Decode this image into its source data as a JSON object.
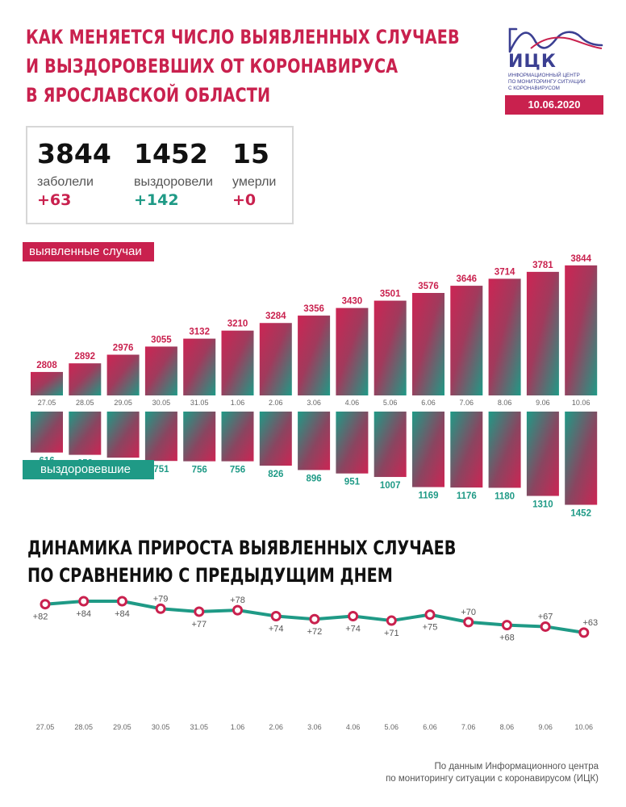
{
  "header": {
    "title_lines": [
      "КАК МЕНЯЕТСЯ ЧИСЛО ВЫЯВЛЕННЫХ СЛУЧАЕВ",
      "И ВЫЗДОРОВЕВШИХ ОТ КОРОНАВИРУСА",
      "В ЯРОСЛАВСКОЙ ОБЛАСТИ"
    ],
    "logo_abbr": "ИЦК",
    "logo_sub_lines": [
      "ИНФОРМАЦИОННЫЙ ЦЕНТР",
      "ПО МОНИТОРИНГУ СИТУАЦИИ",
      "С КОРОНАВИРУСОМ"
    ],
    "date": "10.06.2020"
  },
  "summary": {
    "cases": {
      "value": "3844",
      "label": "заболели",
      "delta": "+63"
    },
    "recovered": {
      "value": "1452",
      "label": "выздоровели",
      "delta": "+142"
    },
    "deaths": {
      "value": "15",
      "label": "умерли",
      "delta": "+0"
    }
  },
  "colors": {
    "accent_red": "#c9214e",
    "accent_green": "#1f9a86",
    "logo_blue": "#3b3f92"
  },
  "chart_data": [
    {
      "type": "bar",
      "categories": [
        "27.05",
        "28.05",
        "29.05",
        "30.05",
        "31.05",
        "1.06",
        "2.06",
        "3.06",
        "4.06",
        "5.06",
        "6.06",
        "7.06",
        "8.06",
        "9.06",
        "10.06"
      ],
      "series": [
        {
          "name": "выявленные случаи",
          "values": [
            2808,
            2892,
            2976,
            3055,
            3132,
            3210,
            3284,
            3356,
            3430,
            3501,
            3576,
            3646,
            3714,
            3781,
            3844
          ],
          "direction": "up"
        },
        {
          "name": "выздоровевшие",
          "values": [
            616,
            653,
            698,
            751,
            756,
            756,
            826,
            896,
            951,
            1007,
            1169,
            1176,
            1180,
            1310,
            1452
          ],
          "direction": "down"
        }
      ]
    },
    {
      "type": "line",
      "title_lines": [
        "ДИНАМИКА ПРИРОСТА ВЫЯВЛЕННЫХ СЛУЧАЕВ",
        "ПО СРАВНЕНИЮ С ПРЕДЫДУЩИМ ДНЕМ"
      ],
      "categories": [
        "27.05",
        "28.05",
        "29.05",
        "30.05",
        "31.05",
        "1.06",
        "2.06",
        "3.06",
        "4.06",
        "5.06",
        "6.06",
        "7.06",
        "8.06",
        "9.06",
        "10.06"
      ],
      "values": [
        82,
        84,
        84,
        79,
        77,
        78,
        74,
        72,
        74,
        71,
        75,
        70,
        68,
        67,
        63
      ],
      "labels": [
        "+82",
        "+84",
        "+84",
        "+79",
        "+77",
        "+78",
        "+74",
        "+72",
        "+74",
        "+71",
        "+75",
        "+70",
        "+68",
        "+67",
        "+63"
      ]
    }
  ],
  "footer_lines": [
    "По данным Информационного центра",
    "по мониторингу ситуации с коронавирусом (ИЦК)"
  ]
}
